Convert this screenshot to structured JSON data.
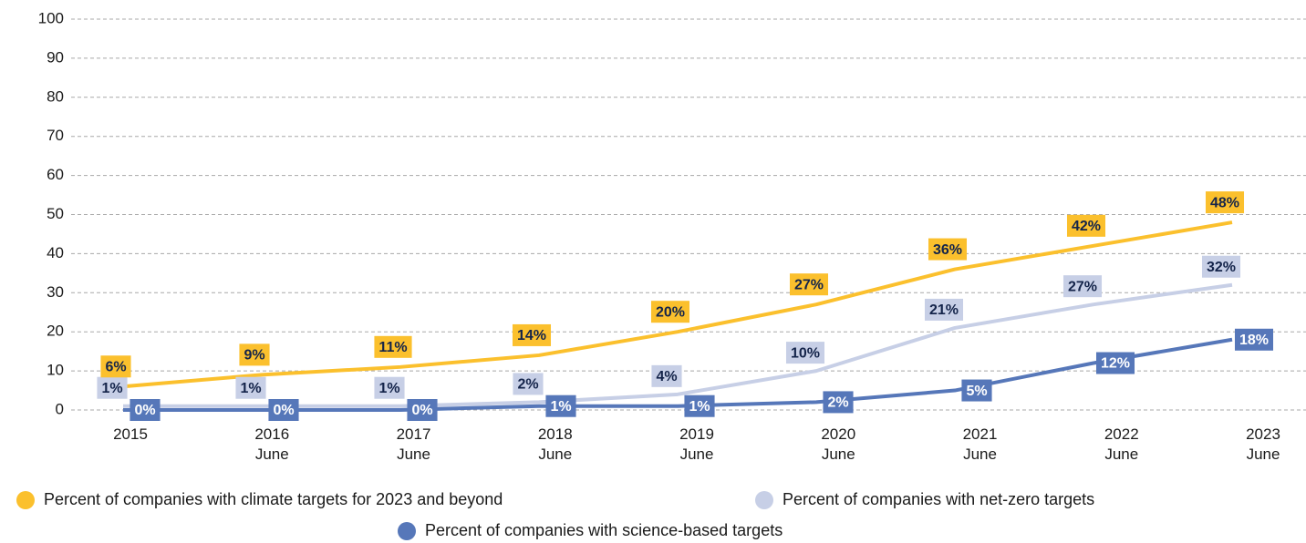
{
  "chart_data": {
    "type": "line",
    "categories": [
      "2015",
      "2016\nJune",
      "2017\nJune",
      "2018\nJune",
      "2019\nJune",
      "2020\nJune",
      "2021\nJune",
      "2022\nJune",
      "2023\nJune"
    ],
    "series": [
      {
        "name": "Percent of companies with climate targets for 2023 and beyond",
        "color": "#fbc02d",
        "values": [
          6,
          9,
          11,
          14,
          20,
          27,
          36,
          42,
          48
        ],
        "value_labels": [
          "6%",
          "9%",
          "11%",
          "14%",
          "20%",
          "27%",
          "36%",
          "42%",
          "48%"
        ]
      },
      {
        "name": "Percent of companies with net-zero targets",
        "color": "#c7cfe6",
        "values": [
          1,
          1,
          1,
          2,
          4,
          10,
          21,
          27,
          32
        ],
        "value_labels": [
          "1%",
          "1%",
          "1%",
          "2%",
          "4%",
          "10%",
          "21%",
          "27%",
          "32%"
        ]
      },
      {
        "name": "Percent of companies with science-based targets",
        "color": "#5677b9",
        "values": [
          0,
          0,
          0,
          1,
          1,
          2,
          5,
          12,
          18
        ],
        "value_labels": [
          "0%",
          "0%",
          "0%",
          "1%",
          "1%",
          "2%",
          "5%",
          "12%",
          "18%"
        ]
      }
    ],
    "ylim": [
      0,
      100
    ],
    "yticks": [
      0,
      10,
      20,
      30,
      40,
      50,
      60,
      70,
      80,
      90,
      100
    ],
    "grid": true
  }
}
